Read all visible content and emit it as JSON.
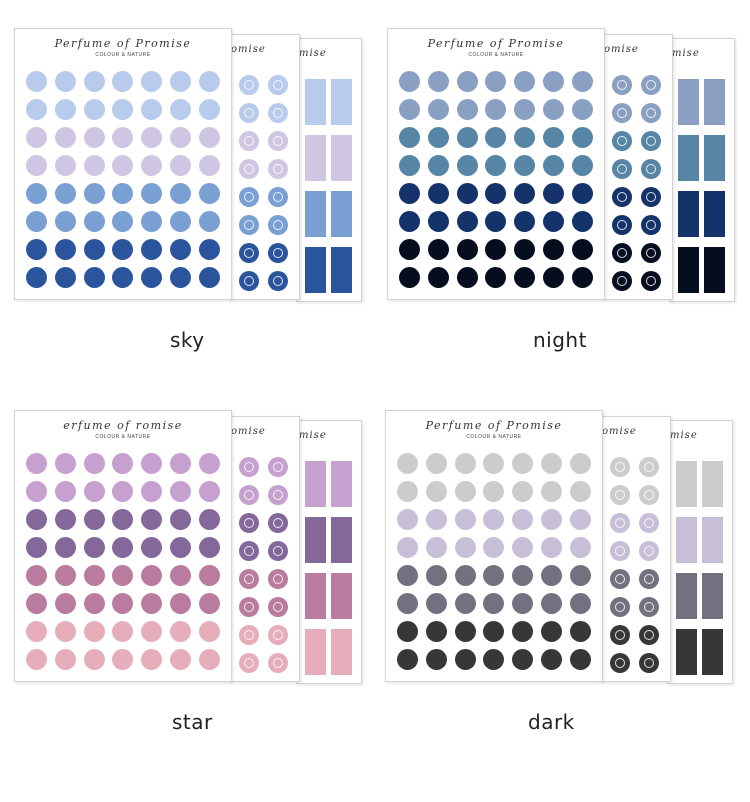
{
  "brand": "Perfume of Promise",
  "subtitle": "COLOUR & NATURE",
  "fragments": {
    "sheet2": "omise",
    "sheet3": "mise"
  },
  "panels": [
    {
      "key": "sky",
      "label": "sky",
      "brand_text": "Perfume of Promise",
      "colors": [
        "#b8cbec",
        "#cfc6e4",
        "#7a9fd3",
        "#2a559d"
      ]
    },
    {
      "key": "night",
      "label": "night",
      "brand_text": "Perfume of Promise",
      "colors": [
        "#8aa0c2",
        "#5785a6",
        "#14336b",
        "#060d1f"
      ]
    },
    {
      "key": "star",
      "label": "star",
      "brand_text": "erfume of   romise",
      "colors": [
        "#c6a0cf",
        "#84689a",
        "#b97c9f",
        "#e6aebb"
      ]
    },
    {
      "key": "dark",
      "label": "dark",
      "brand_text": "Perfume of Promise",
      "colors": [
        "#ccccca",
        "#c7bfd8",
        "#757080",
        "#363836"
      ]
    }
  ]
}
